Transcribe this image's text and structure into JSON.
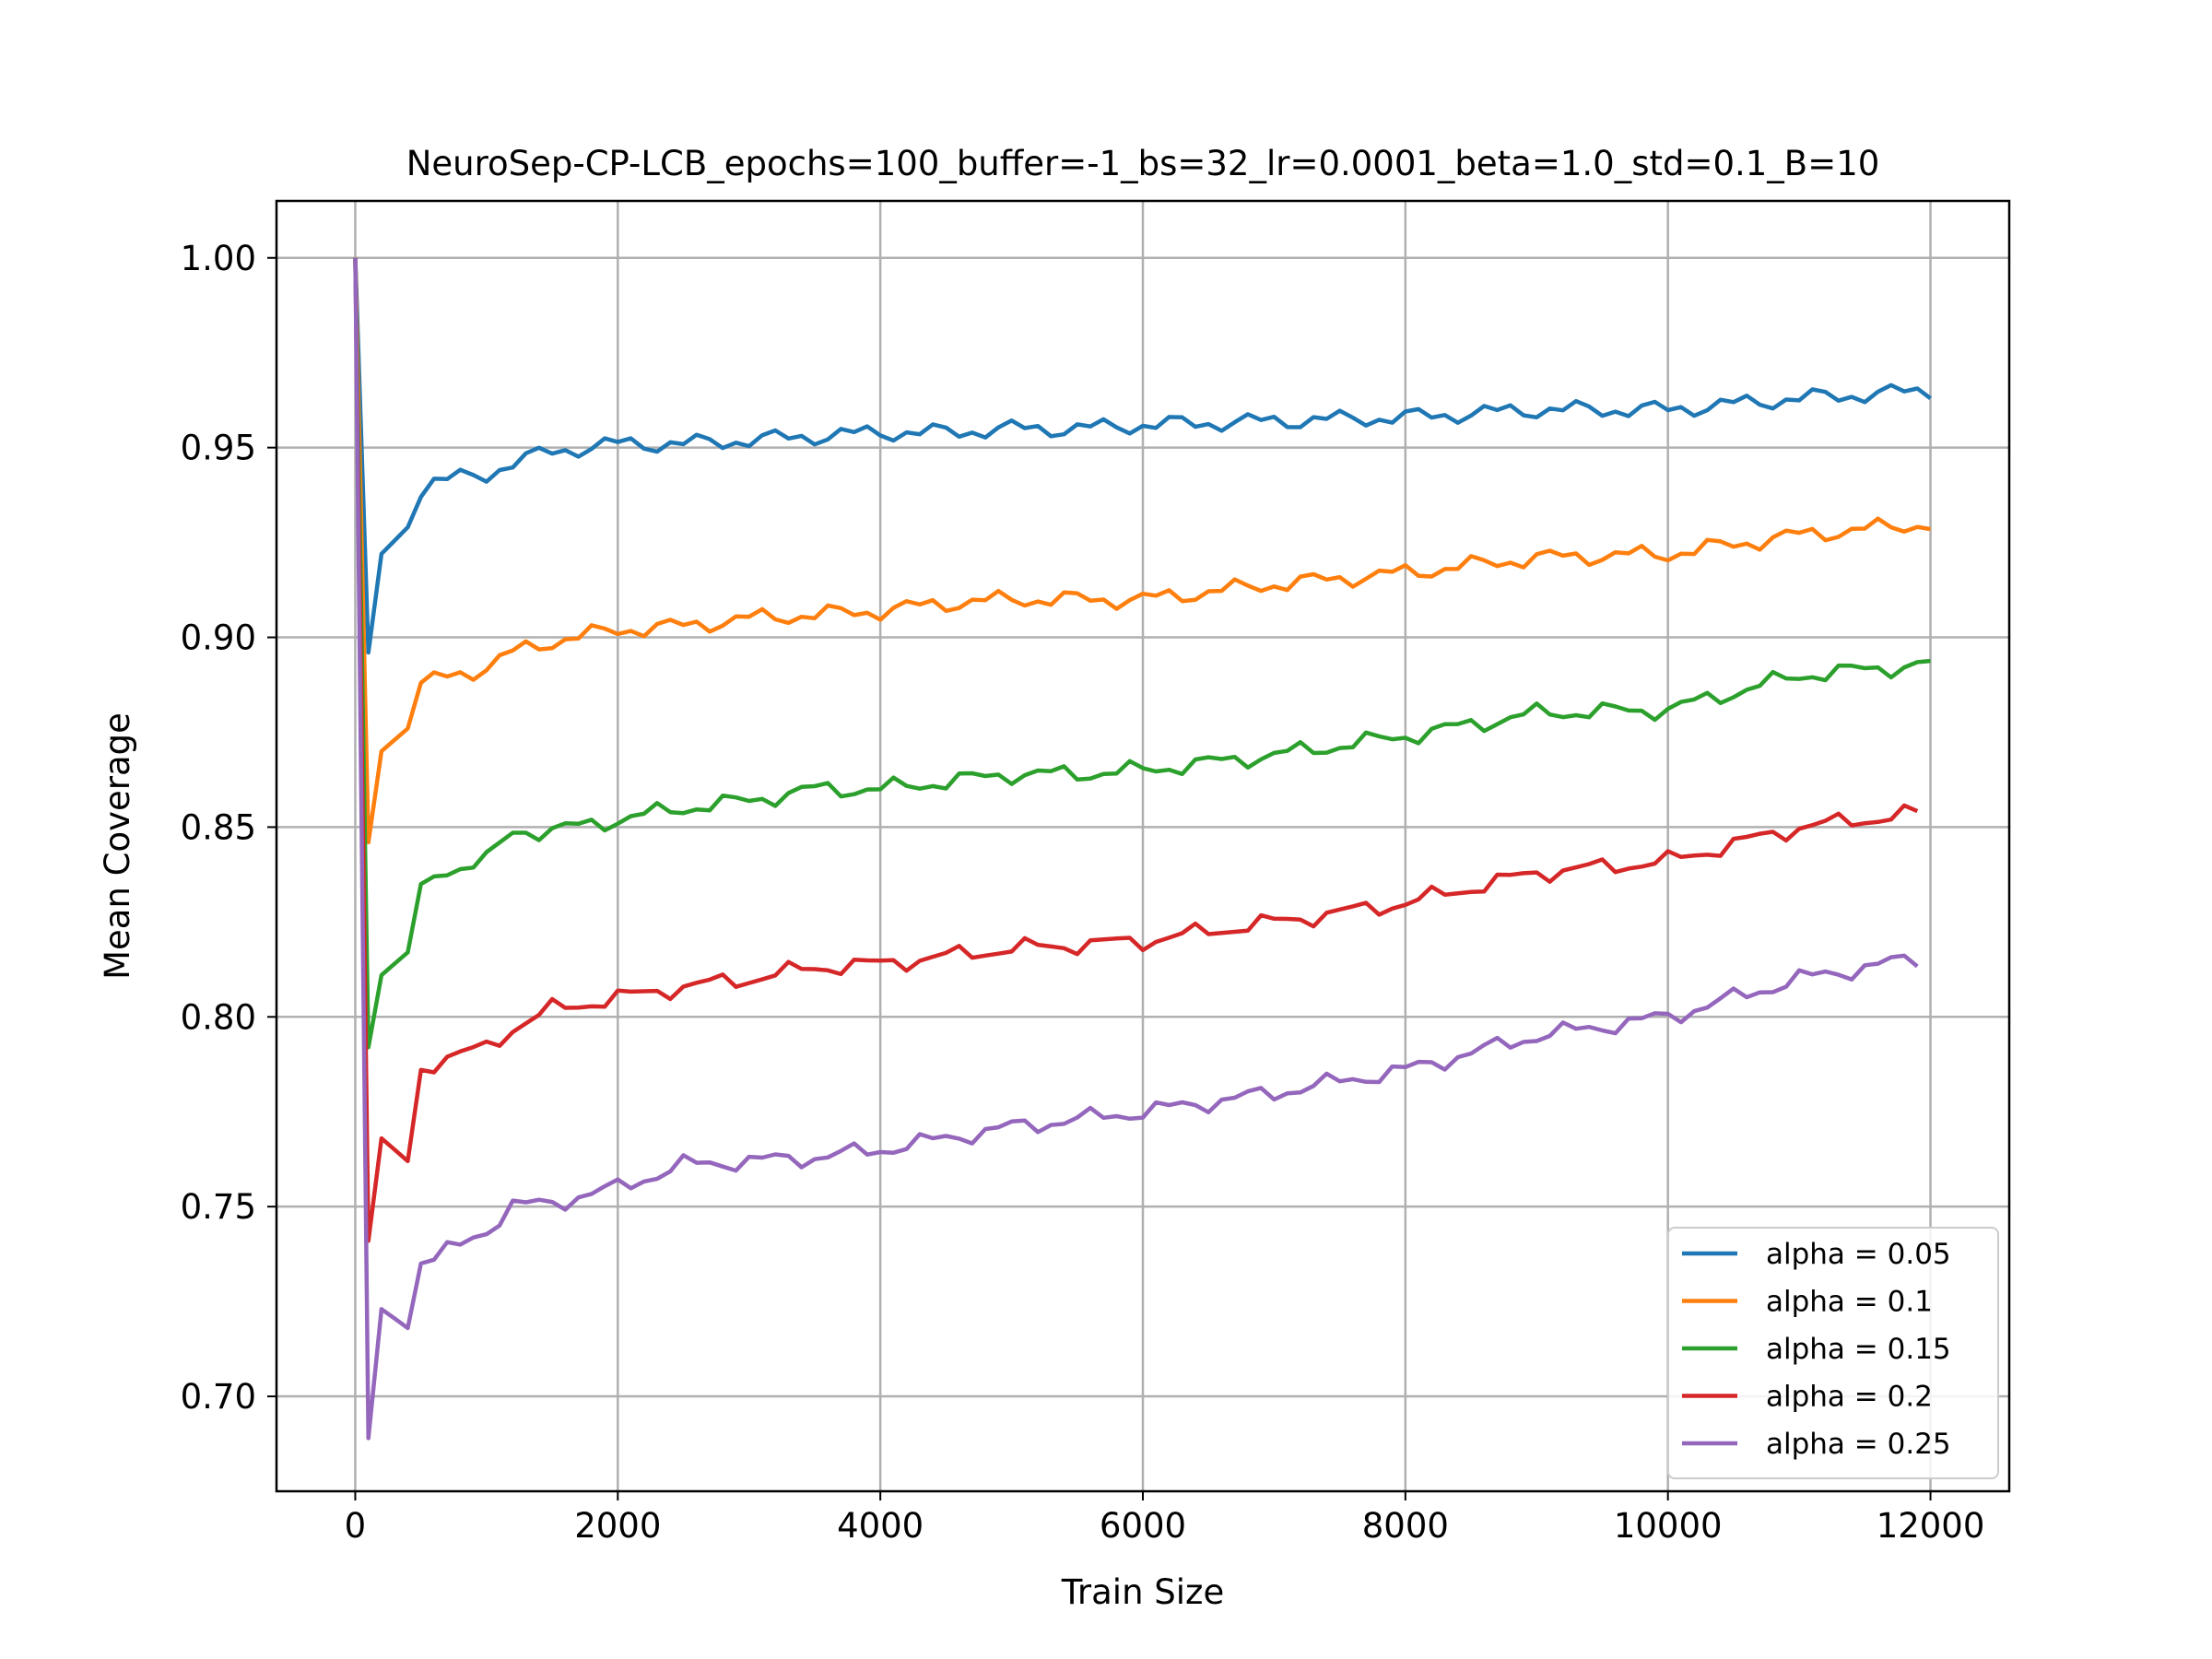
{
  "chart_data": {
    "type": "line",
    "title": "NeuroSep-CP-LCB_epochs=100_buffer=-1_bs=32_lr=0.0001_beta=1.0_std=0.1_B=10",
    "xlabel": "Train Size",
    "ylabel": "Mean Coverage",
    "xlim": [
      -600,
      12600
    ],
    "ylim": [
      0.675,
      1.015
    ],
    "xticks": [
      0,
      2000,
      4000,
      6000,
      8000,
      10000,
      12000
    ],
    "xtick_labels": [
      "0",
      "2000",
      "4000",
      "6000",
      "8000",
      "10000",
      "12000"
    ],
    "yticks": [
      0.7,
      0.75,
      0.8,
      0.85,
      0.9,
      0.95,
      1.0
    ],
    "ytick_labels": [
      "0.70",
      "0.75",
      "0.80",
      "0.85",
      "0.90",
      "0.95",
      "1.00"
    ],
    "grid": true,
    "legend_position": "lower-right",
    "x_anchors": [
      0,
      100,
      200,
      400,
      500,
      600,
      1000,
      1200,
      1500,
      2000,
      2500,
      3000,
      3500,
      4000,
      4500,
      5000,
      5500,
      6000,
      7000,
      8000,
      9000,
      10000,
      11000,
      12000
    ],
    "series": [
      {
        "name": "alpha = 0.05",
        "color": "#1f77b4",
        "x_max": 12000,
        "anchors": [
          1.0,
          0.896,
          0.922,
          0.929,
          0.937,
          0.941,
          0.943,
          0.946,
          0.949,
          0.951,
          0.951,
          0.952,
          0.953,
          0.954,
          0.954,
          0.955,
          0.955,
          0.956,
          0.957,
          0.958,
          0.96,
          0.96,
          0.963,
          0.965
        ]
      },
      {
        "name": "alpha = 0.1",
        "color": "#ff7f0e",
        "x_max": 12000,
        "anchors": [
          1.0,
          0.846,
          0.87,
          0.876,
          0.888,
          0.889,
          0.892,
          0.896,
          0.899,
          0.902,
          0.903,
          0.905,
          0.906,
          0.907,
          0.909,
          0.91,
          0.91,
          0.91,
          0.914,
          0.917,
          0.921,
          0.922,
          0.927,
          0.93
        ]
      },
      {
        "name": "alpha = 0.15",
        "color": "#2ca02c",
        "x_max": 12000,
        "anchors": [
          1.0,
          0.792,
          0.811,
          0.817,
          0.835,
          0.838,
          0.841,
          0.849,
          0.849,
          0.852,
          0.855,
          0.857,
          0.86,
          0.86,
          0.862,
          0.864,
          0.864,
          0.865,
          0.869,
          0.874,
          0.88,
          0.881,
          0.89,
          0.893
        ]
      },
      {
        "name": "alpha = 0.2",
        "color": "#d62728",
        "x_max": 11900,
        "anchors": [
          1.0,
          0.741,
          0.768,
          0.762,
          0.786,
          0.788,
          0.792,
          0.797,
          0.802,
          0.805,
          0.808,
          0.81,
          0.813,
          0.814,
          0.816,
          0.818,
          0.819,
          0.82,
          0.825,
          0.83,
          0.838,
          0.841,
          0.85,
          0.854
        ]
      },
      {
        "name": "alpha = 0.25",
        "color": "#9467bd",
        "x_max": 11900,
        "anchors": [
          1.0,
          0.689,
          0.723,
          0.718,
          0.735,
          0.736,
          0.744,
          0.75,
          0.751,
          0.755,
          0.761,
          0.762,
          0.763,
          0.765,
          0.768,
          0.771,
          0.773,
          0.775,
          0.78,
          0.786,
          0.795,
          0.8,
          0.81,
          0.816
        ]
      }
    ]
  }
}
